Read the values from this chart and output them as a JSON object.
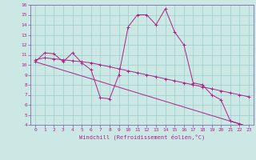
{
  "xlabel": "Windchill (Refroidissement éolien,°C)",
  "background_color": "#cce8e4",
  "line_color": "#aa2288",
  "grid_color": "#99cccc",
  "spine_color": "#7755aa",
  "xlim": [
    -0.5,
    23.5
  ],
  "ylim": [
    4,
    16
  ],
  "xticks": [
    0,
    1,
    2,
    3,
    4,
    5,
    6,
    7,
    8,
    9,
    10,
    11,
    12,
    13,
    14,
    15,
    16,
    17,
    18,
    19,
    20,
    21,
    22,
    23
  ],
  "yticks": [
    4,
    5,
    6,
    7,
    8,
    9,
    10,
    11,
    12,
    13,
    14,
    15,
    16
  ],
  "series": [
    {
      "x": [
        0,
        1,
        2,
        3,
        4,
        5,
        6,
        7,
        8,
        9,
        10,
        11,
        12,
        13,
        14,
        15,
        16,
        17,
        18,
        19,
        20,
        21,
        22,
        23
      ],
      "y": [
        10.3,
        11.2,
        11.1,
        10.3,
        11.2,
        10.2,
        9.5,
        6.7,
        6.6,
        9.0,
        13.8,
        15.0,
        15.0,
        14.0,
        15.6,
        13.3,
        12.0,
        8.2,
        8.0,
        7.0,
        6.5,
        4.4,
        4.1,
        3.8
      ],
      "markers": true
    },
    {
      "x": [
        0,
        1,
        2,
        3,
        4,
        5,
        6,
        7,
        8,
        9,
        10,
        11,
        12,
        13,
        14,
        15,
        16,
        17,
        18,
        19,
        20,
        21,
        22,
        23
      ],
      "y": [
        10.5,
        10.7,
        10.6,
        10.5,
        10.4,
        10.3,
        10.2,
        10.0,
        9.8,
        9.6,
        9.4,
        9.2,
        9.0,
        8.8,
        8.6,
        8.4,
        8.2,
        8.0,
        7.8,
        7.6,
        7.4,
        7.2,
        7.0,
        6.8
      ],
      "markers": true
    },
    {
      "x": [
        0,
        23
      ],
      "y": [
        10.3,
        3.8
      ],
      "markers": false
    }
  ]
}
